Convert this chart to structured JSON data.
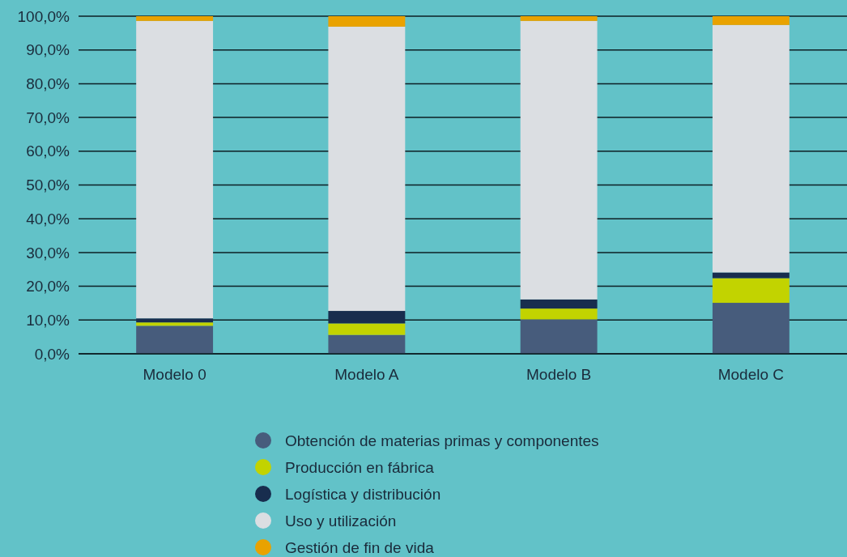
{
  "chart_data": {
    "type": "bar",
    "stacked": true,
    "categories": [
      "Modelo 0",
      "Modelo A",
      "Modelo B",
      "Modelo C"
    ],
    "series": [
      {
        "name": "Obtención de materias primas y componentes",
        "color": "#475c7c",
        "values": [
          8.3,
          5.6,
          10.2,
          15.1
        ]
      },
      {
        "name": "Producción en fábrica",
        "color": "#c2d300",
        "values": [
          1.0,
          3.4,
          3.2,
          7.3
        ]
      },
      {
        "name": "Logística y distribución",
        "color": "#182d4e",
        "values": [
          1.2,
          3.7,
          2.7,
          1.7
        ]
      },
      {
        "name": "Uso y utilización",
        "color": "#dbdee2",
        "values": [
          88.1,
          84.2,
          82.5,
          73.3
        ]
      },
      {
        "name": "Gestión de fin de vida",
        "color": "#e9a200",
        "values": [
          1.4,
          3.1,
          1.4,
          2.6
        ]
      }
    ],
    "ylim": [
      0,
      100
    ],
    "yticks": [
      {
        "value": 0,
        "label": "0,0%"
      },
      {
        "value": 10,
        "label": "10,0%"
      },
      {
        "value": 20,
        "label": "20,0%"
      },
      {
        "value": 30,
        "label": "30,0%"
      },
      {
        "value": 40,
        "label": "40,0%"
      },
      {
        "value": 50,
        "label": "50,0%"
      },
      {
        "value": 60,
        "label": "60,0%"
      },
      {
        "value": 70,
        "label": "70,0%"
      },
      {
        "value": 80,
        "label": "80,0%"
      },
      {
        "value": 90,
        "label": "90,0%"
      },
      {
        "value": 100,
        "label": "100,0%"
      }
    ],
    "grid": "y",
    "legend": "bottom"
  }
}
